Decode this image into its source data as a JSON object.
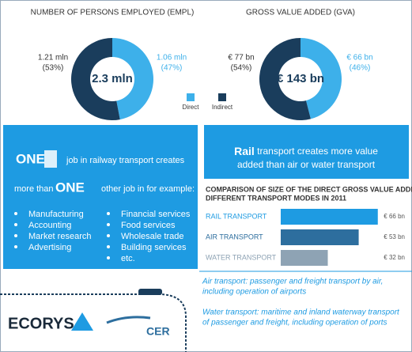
{
  "empl": {
    "title": "NUMBER OF PERSONS EMPLOYED (EMPL)",
    "total": "2.3 mln",
    "segments": [
      {
        "name": "Direct",
        "value_label": "1.06 mln",
        "share": 47,
        "share_label": "(47%)",
        "color": "#3db0ea"
      },
      {
        "name": "Indirect",
        "value_label": "1.21 mln",
        "share": 53,
        "share_label": "(53%)",
        "color": "#1a3d5c"
      }
    ]
  },
  "gva": {
    "title": "GROSS VALUE ADDED (GVA)",
    "total": "€ 143 bn",
    "segments": [
      {
        "name": "Direct",
        "value_label": "€ 66 bn",
        "share": 46,
        "share_label": "(46%)",
        "color": "#3db0ea"
      },
      {
        "name": "Indirect",
        "value_label": "€ 77 bn",
        "share": 54,
        "share_label": "(54%)",
        "color": "#1a3d5c"
      }
    ]
  },
  "legend": [
    {
      "name": "Direct",
      "color": "#3db0ea"
    },
    {
      "name": "Indirect",
      "color": "#1a3d5c"
    }
  ],
  "jobs": {
    "one_a": "ONE",
    "line1": "job in railway transport creates",
    "more": "more than",
    "one_b": "ONE",
    "line2": "other job in for example:",
    "list_left": [
      "Manufacturing",
      "Accounting",
      "Market research",
      "Advertising"
    ],
    "list_right": [
      "Financial services",
      "Food services",
      "Wholesale trade",
      "Building services",
      "etc."
    ]
  },
  "rail_box": {
    "bold": "Rail",
    "rest": "transport creates more value",
    "line2": "added than air or water transport"
  },
  "comparison": {
    "title_line1": "COMPARISON OF SIZE OF THE DIRECT GROSS VALUE ADDED OF",
    "title_line2": "DIFFERENT TRANSPORT MODES IN 2011",
    "bars": [
      {
        "name": "RAIL TRANSPORT",
        "value": 66,
        "value_label": "€ 66 bn",
        "color": "#1e9be2"
      },
      {
        "name": "AIR TRANSPORT",
        "value": 53,
        "value_label": "€ 53 bn",
        "color": "#2d6e9e"
      },
      {
        "name": "WATER TRANSPORT",
        "value": 32,
        "value_label": "€ 32 bn",
        "color": "#8ea3b4"
      }
    ]
  },
  "notes": {
    "air": [
      "Air transport: passenger and freight transport by air,",
      "including operation of airports"
    ],
    "water": [
      "Water transport: maritime and inland waterway transport",
      "of passenger and freight, including operation of ports"
    ]
  },
  "logos": {
    "ecorys": "ECORYS",
    "cer": "CER"
  }
}
